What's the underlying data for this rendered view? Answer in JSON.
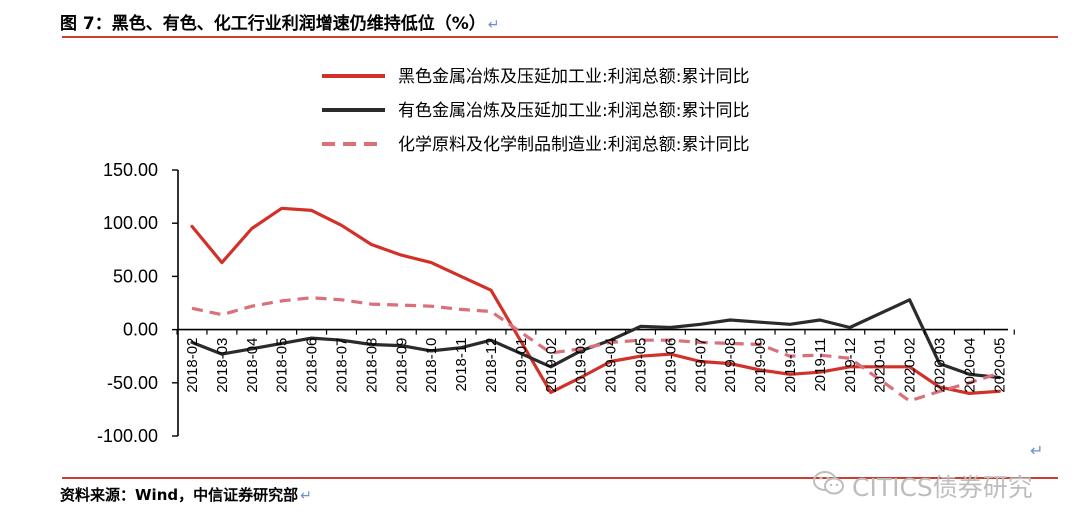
{
  "figure": {
    "title": "图 7：黑色、有色、化工行业利润增速仍维持低位（%）",
    "return_mark": "↵",
    "source": "资料来源：Wind，中信证券研究部",
    "watermark": "CITICS债券研究"
  },
  "chart_data": {
    "type": "line",
    "title": "",
    "xlabel": "",
    "ylabel": "",
    "ylim": [
      -100,
      150
    ],
    "yticks": [
      "150.00",
      "100.00",
      "50.00",
      "0.00",
      "-50.00",
      "-100.00"
    ],
    "categories": [
      "2018-02",
      "2018-03",
      "2018-04",
      "2018-05",
      "2018-06",
      "2018-07",
      "2018-08",
      "2018-09",
      "2018-10",
      "2018-11",
      "2018-12",
      "2019-01",
      "2019-02",
      "2019-03",
      "2019-04",
      "2019-05",
      "2019-06",
      "2019-07",
      "2019-08",
      "2019-09",
      "2019-10",
      "2019-11",
      "2019-12",
      "2020-01",
      "2020-02",
      "2020-03",
      "2020-04",
      "2020-05"
    ],
    "x_tick_labels": [
      "2018-02",
      "2018-03",
      "2018-04",
      "2018-05",
      "2018-06",
      "2018-07",
      "2018-08",
      "2018-09",
      "2018-10",
      "2018-11",
      "2018-12",
      "2019-01",
      "2019-02",
      "2019-03",
      "2019-04",
      "2019-05",
      "2019-06",
      "2019-07",
      "2019-08",
      "2019-09",
      "2019-10",
      "2019-11",
      "2019-12",
      "2020-01",
      "2020-02",
      "2020-03",
      "2020-04",
      "2020-05"
    ],
    "grid": false,
    "legend_position": "top",
    "series": [
      {
        "name": "黑色金属冶炼及压延加工业:利润总额:累计同比",
        "color": "#d2312a",
        "style": "solid",
        "values": [
          97,
          63,
          95,
          114,
          112,
          98,
          80,
          70,
          63,
          50,
          37,
          null,
          -59,
          -45,
          -30,
          -25,
          -23,
          -30,
          -32,
          -38,
          -42,
          -40,
          -35,
          null,
          -35,
          -54,
          -60,
          -58
        ]
      },
      {
        "name": "有色金属冶炼及压延加工业:利润总额:累计同比",
        "color": "#2b2b2b",
        "style": "solid",
        "values": [
          -12,
          -23,
          -18,
          -13,
          -8,
          -10,
          -14,
          -15,
          -20,
          -17,
          -10,
          null,
          -35,
          -20,
          -10,
          3,
          2,
          5,
          9,
          7,
          5,
          9,
          2,
          null,
          28,
          -32,
          -42,
          -45
        ]
      },
      {
        "name": "化学原料及化学制品制造业:利润总额:累计同比",
        "color": "#d9707a",
        "style": "dashed",
        "values": [
          20,
          14,
          22,
          27,
          30,
          28,
          24,
          23,
          22,
          19,
          17,
          null,
          -22,
          -18,
          -12,
          -10,
          -10,
          -12,
          -13,
          -14,
          -25,
          -24,
          -27,
          null,
          -67,
          -58,
          -50,
          -41
        ]
      }
    ]
  }
}
